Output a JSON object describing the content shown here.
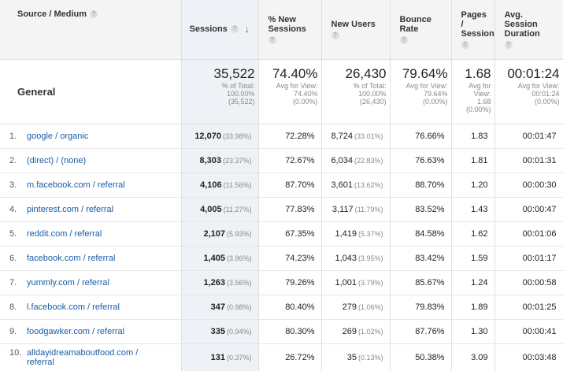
{
  "columns": {
    "source": "Source / Medium",
    "sessions": "Sessions",
    "pct_new_sessions": "% New Sessions",
    "new_users": "New Users",
    "bounce_rate": "Bounce Rate",
    "pages_session": "Pages / Session",
    "avg_duration": "Avg. Session Duration"
  },
  "help_glyph": "?",
  "sort_glyph": "↓",
  "general": {
    "label": "General",
    "sessions": {
      "value": "35,522",
      "l1": "% of Total:",
      "l2": "100.00%",
      "l3": "(35,522)"
    },
    "pct_new": {
      "value": "74.40%",
      "l1": "Avg for View:",
      "l2": "74.40%",
      "l3": "(0.00%)"
    },
    "new_users": {
      "value": "26,430",
      "l1": "% of Total:",
      "l2": "100.00%",
      "l3": "(26,430)"
    },
    "bounce": {
      "value": "79.64%",
      "l1": "Avg for View:",
      "l2": "79.64%",
      "l3": "(0.00%)"
    },
    "pages": {
      "value": "1.68",
      "l1": "Avg for",
      "l2": "View:",
      "l3": "1.68",
      "l4": "(0.00%)"
    },
    "duration": {
      "value": "00:01:24",
      "l1": "Avg for View:",
      "l2": "00:01:24",
      "l3": "(0.00%)"
    }
  },
  "rows": [
    {
      "idx": "1.",
      "source": "google / organic",
      "sessions": "12,070",
      "sessions_pct": "(33.98%)",
      "pct_new": "72.28%",
      "new_users": "8,724",
      "new_users_pct": "(33.01%)",
      "bounce": "76.66%",
      "pages": "1.83",
      "duration": "00:01:47"
    },
    {
      "idx": "2.",
      "source": "(direct) / (none)",
      "sessions": "8,303",
      "sessions_pct": "(23.37%)",
      "pct_new": "72.67%",
      "new_users": "6,034",
      "new_users_pct": "(22.83%)",
      "bounce": "76.63%",
      "pages": "1.81",
      "duration": "00:01:31"
    },
    {
      "idx": "3.",
      "source": "m.facebook.com / referral",
      "sessions": "4,106",
      "sessions_pct": "(11.56%)",
      "pct_new": "87.70%",
      "new_users": "3,601",
      "new_users_pct": "(13.62%)",
      "bounce": "88.70%",
      "pages": "1.20",
      "duration": "00:00:30"
    },
    {
      "idx": "4.",
      "source": "pinterest.com / referral",
      "sessions": "4,005",
      "sessions_pct": "(11.27%)",
      "pct_new": "77.83%",
      "new_users": "3,117",
      "new_users_pct": "(11.79%)",
      "bounce": "83.52%",
      "pages": "1.43",
      "duration": "00:00:47"
    },
    {
      "idx": "5.",
      "source": "reddit.com / referral",
      "sessions": "2,107",
      "sessions_pct": "(5.93%)",
      "pct_new": "67.35%",
      "new_users": "1,419",
      "new_users_pct": "(5.37%)",
      "bounce": "84.58%",
      "pages": "1.62",
      "duration": "00:01:06"
    },
    {
      "idx": "6.",
      "source": "facebook.com / referral",
      "sessions": "1,405",
      "sessions_pct": "(3.96%)",
      "pct_new": "74.23%",
      "new_users": "1,043",
      "new_users_pct": "(3.95%)",
      "bounce": "83.42%",
      "pages": "1.59",
      "duration": "00:01:17"
    },
    {
      "idx": "7.",
      "source": "yummly.com / referral",
      "sessions": "1,263",
      "sessions_pct": "(3.56%)",
      "pct_new": "79.26%",
      "new_users": "1,001",
      "new_users_pct": "(3.79%)",
      "bounce": "85.67%",
      "pages": "1.24",
      "duration": "00:00:58"
    },
    {
      "idx": "8.",
      "source": "l.facebook.com / referral",
      "sessions": "347",
      "sessions_pct": "(0.98%)",
      "pct_new": "80.40%",
      "new_users": "279",
      "new_users_pct": "(1.06%)",
      "bounce": "79.83%",
      "pages": "1.89",
      "duration": "00:01:25"
    },
    {
      "idx": "9.",
      "source": "foodgawker.com / referral",
      "sessions": "335",
      "sessions_pct": "(0.94%)",
      "pct_new": "80.30%",
      "new_users": "269",
      "new_users_pct": "(1.02%)",
      "bounce": "87.76%",
      "pages": "1.30",
      "duration": "00:00:41"
    },
    {
      "idx": "10.",
      "source": "alldayidreamaboutfood.com / referral",
      "sessions": "131",
      "sessions_pct": "(0.37%)",
      "pct_new": "26.72%",
      "new_users": "35",
      "new_users_pct": "(0.13%)",
      "bounce": "50.38%",
      "pages": "3.09",
      "duration": "00:03:48"
    }
  ]
}
